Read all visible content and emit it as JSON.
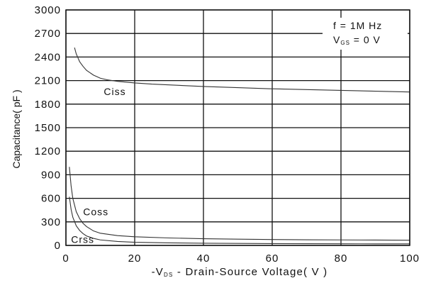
{
  "chart_data": {
    "type": "line",
    "title": "",
    "xlabel": {
      "prefix": "-V",
      "sub": "DS",
      "rest": " - Drain-Source Voltage( V )"
    },
    "ylabel": "Capacitance( pF )",
    "xlim": [
      0,
      100
    ],
    "ylim": [
      0,
      3000
    ],
    "x_ticks": [
      0,
      20,
      40,
      60,
      80,
      100
    ],
    "y_ticks": [
      0,
      300,
      600,
      900,
      1200,
      1500,
      1800,
      2100,
      2400,
      2700,
      3000
    ],
    "grid": true,
    "annotations": {
      "freq": "f  =  1M Hz",
      "vgs_prefix": "V",
      "vgs_sub": "GS",
      "vgs_rest": " = 0 V"
    },
    "series": [
      {
        "name": "Ciss",
        "label_x": 11,
        "label_y": 1960,
        "x": [
          2.5,
          3,
          4,
          5,
          6,
          8,
          10,
          12,
          15,
          20,
          25,
          30,
          40,
          50,
          60,
          70,
          80,
          90,
          100
        ],
        "y": [
          2520,
          2440,
          2340,
          2280,
          2230,
          2170,
          2130,
          2110,
          2090,
          2070,
          2055,
          2045,
          2025,
          2010,
          1995,
          1985,
          1975,
          1965,
          1955
        ]
      },
      {
        "name": "Coss",
        "label_x": 5,
        "label_y": 430,
        "x": [
          1,
          1.5,
          2,
          3,
          4,
          5,
          6,
          8,
          10,
          15,
          20,
          30,
          40,
          50,
          60,
          70,
          80,
          90,
          100
        ],
        "y": [
          1000,
          760,
          600,
          430,
          340,
          280,
          240,
          185,
          155,
          125,
          110,
          95,
          85,
          80,
          75,
          72,
          70,
          68,
          66
        ]
      },
      {
        "name": "Crss",
        "label_x": 1.5,
        "label_y": 75,
        "x": [
          1,
          1.5,
          2,
          3,
          4,
          5,
          6,
          8,
          10,
          15,
          20,
          30,
          40,
          50,
          60,
          70,
          80,
          90,
          100
        ],
        "y": [
          620,
          460,
          360,
          250,
          190,
          150,
          120,
          90,
          70,
          50,
          40,
          32,
          28,
          25,
          23,
          22,
          21,
          20,
          20
        ]
      }
    ]
  }
}
